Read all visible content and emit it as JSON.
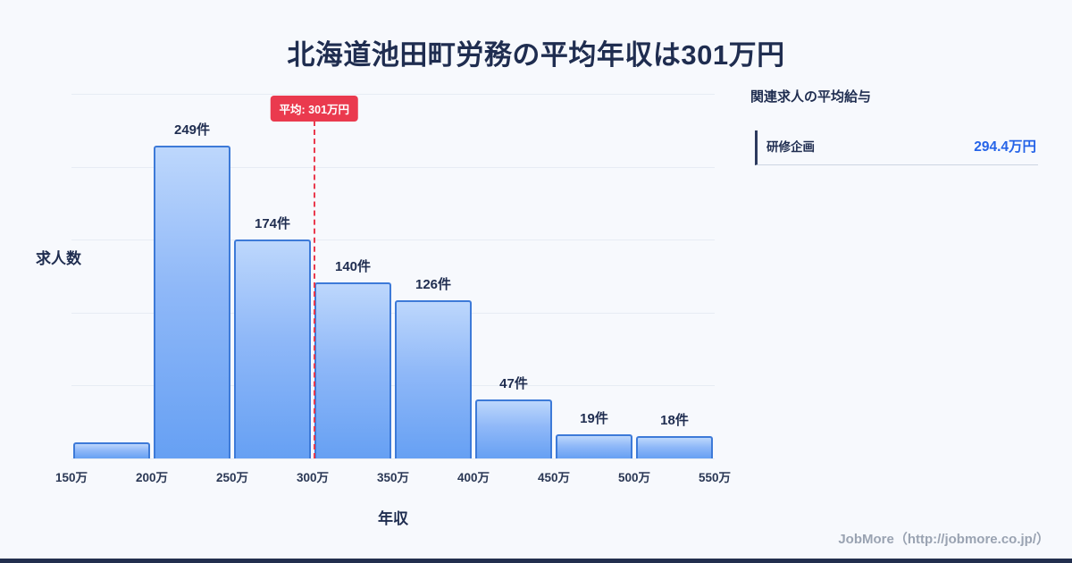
{
  "page": {
    "title": "北海道池田町労務の平均年収は301万円",
    "footer": "JobMore（http://jobmore.co.jp/）"
  },
  "chart_data": {
    "type": "bar",
    "title": "北海道池田町労務の平均年収は301万円",
    "xlabel": "年収",
    "ylabel": "求人数",
    "categories": [
      "150万-200万",
      "200万-250万",
      "250万-300万",
      "300万-350万",
      "350万-400万",
      "400万-450万",
      "450万-500万",
      "500万-550万"
    ],
    "values": [
      13,
      249,
      174,
      140,
      126,
      47,
      19,
      18
    ],
    "bar_labels": [
      "",
      "249件",
      "174件",
      "140件",
      "126件",
      "47件",
      "19件",
      "18件"
    ],
    "x_ticks": [
      "150万",
      "200万",
      "250万",
      "300万",
      "350万",
      "400万",
      "450万",
      "500万",
      "550万"
    ],
    "xlim": [
      150,
      550
    ],
    "ylim": [
      0,
      260
    ],
    "grid": true,
    "legend": false,
    "average_line": {
      "value": 301,
      "label": "平均: 301万円"
    },
    "colors": {
      "bar_fill_top": "#bdd7fc",
      "bar_fill_bottom": "#66a0f3",
      "bar_border": "#3d7ad8",
      "average_red": "#ea3a4e",
      "value_blue": "#2563e8",
      "text_navy": "#1f2d50",
      "background": "#f7f9fd"
    }
  },
  "side_panel": {
    "heading": "関連求人の平均給与",
    "items": [
      {
        "label": "研修企画",
        "value": "294.4万円"
      }
    ]
  }
}
